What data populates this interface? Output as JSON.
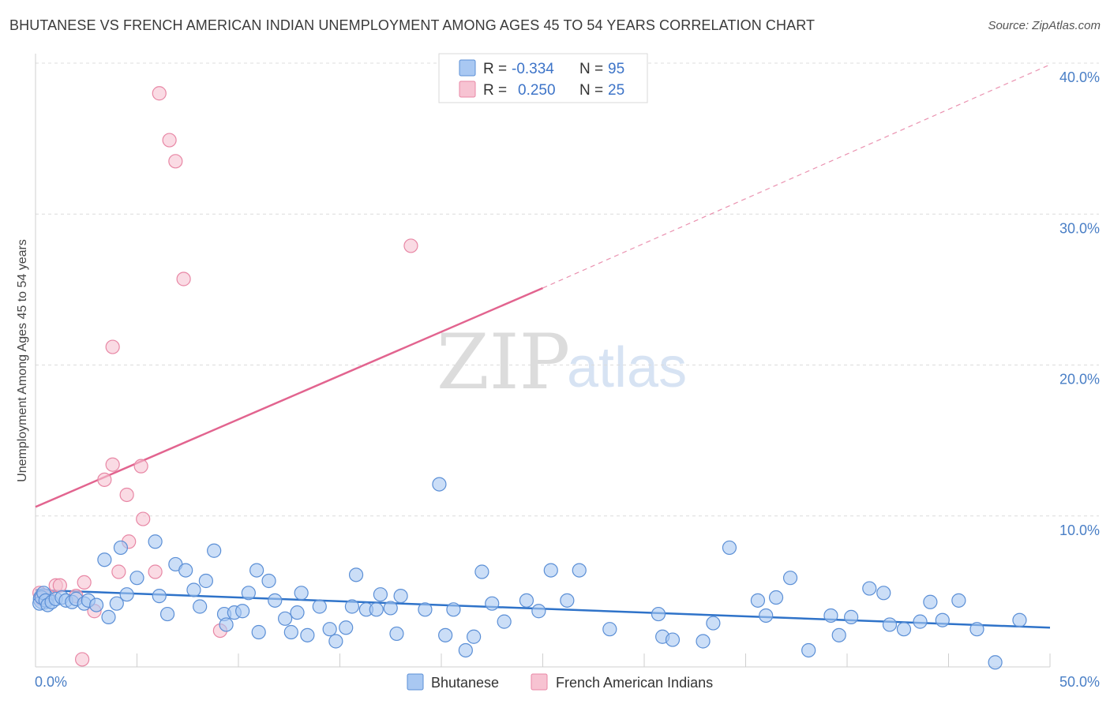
{
  "title": "BHUTANESE VS FRENCH AMERICAN INDIAN UNEMPLOYMENT AMONG AGES 45 TO 54 YEARS CORRELATION CHART",
  "source": "Source: ZipAtlas.com",
  "watermark": {
    "zip": "ZIP",
    "atlas": "atlas"
  },
  "colors": {
    "blue_fill": "#a9c8f2",
    "blue_stroke": "#5b8fd6",
    "blue_line": "#2f73c9",
    "pink_fill": "#f7c3d2",
    "pink_stroke": "#e887a5",
    "pink_line": "#e2648f",
    "grid": "#dcdcdc",
    "tick_text": "#4a7fc6"
  },
  "legend": {
    "series": [
      {
        "r_label": "R =",
        "r_value": "-0.334",
        "n_label": "N =",
        "n_value": "95"
      },
      {
        "r_label": "R =",
        "r_value": "0.250",
        "n_label": "N =",
        "n_value": "25"
      }
    ]
  },
  "bottom_legend": [
    "Bhutanese",
    "French American Indians"
  ],
  "chart_data": {
    "type": "scatter",
    "title": "BHUTANESE VS FRENCH AMERICAN INDIAN UNEMPLOYMENT AMONG AGES 45 TO 54 YEARS CORRELATION CHART",
    "xlabel": "",
    "ylabel": "Unemployment Among Ages 45 to 54 years",
    "xlim": [
      0,
      50
    ],
    "ylim": [
      0,
      40
    ],
    "x_tick_labels": [
      "0.0%",
      "50.0%"
    ],
    "y_ticks": [
      10,
      20,
      30,
      40
    ],
    "y_tick_labels": [
      "10.0%",
      "20.0%",
      "30.0%",
      "40.0%"
    ],
    "grid": true,
    "series": [
      {
        "name": "Bhutanese",
        "points": [
          [
            0.2,
            4.2
          ],
          [
            0.3,
            4.6
          ],
          [
            0.4,
            4.9
          ],
          [
            0.5,
            4.4
          ],
          [
            0.6,
            4.1
          ],
          [
            0.8,
            4.3
          ],
          [
            1.0,
            4.5
          ],
          [
            1.3,
            4.6
          ],
          [
            1.5,
            4.4
          ],
          [
            1.8,
            4.3
          ],
          [
            2.0,
            4.5
          ],
          [
            2.4,
            4.2
          ],
          [
            2.6,
            4.4
          ],
          [
            3.0,
            4.1
          ],
          [
            3.4,
            7.1
          ],
          [
            3.6,
            3.3
          ],
          [
            4.0,
            4.2
          ],
          [
            4.2,
            7.9
          ],
          [
            4.5,
            4.8
          ],
          [
            5.0,
            5.9
          ],
          [
            5.9,
            8.3
          ],
          [
            6.1,
            4.7
          ],
          [
            6.5,
            3.5
          ],
          [
            6.9,
            6.8
          ],
          [
            7.4,
            6.4
          ],
          [
            7.8,
            5.1
          ],
          [
            8.1,
            4.0
          ],
          [
            8.4,
            5.7
          ],
          [
            8.8,
            7.7
          ],
          [
            9.3,
            3.5
          ],
          [
            9.4,
            2.8
          ],
          [
            9.8,
            3.6
          ],
          [
            10.2,
            3.7
          ],
          [
            10.5,
            4.9
          ],
          [
            10.9,
            6.4
          ],
          [
            11.0,
            2.3
          ],
          [
            11.5,
            5.7
          ],
          [
            11.8,
            4.4
          ],
          [
            12.3,
            3.2
          ],
          [
            12.6,
            2.3
          ],
          [
            12.9,
            3.6
          ],
          [
            13.1,
            4.9
          ],
          [
            13.4,
            2.1
          ],
          [
            14.0,
            4.0
          ],
          [
            14.5,
            2.5
          ],
          [
            14.8,
            1.7
          ],
          [
            15.3,
            2.6
          ],
          [
            15.6,
            4.0
          ],
          [
            15.8,
            6.1
          ],
          [
            16.3,
            3.8
          ],
          [
            16.8,
            3.8
          ],
          [
            17.0,
            4.8
          ],
          [
            17.5,
            3.9
          ],
          [
            17.8,
            2.2
          ],
          [
            18.0,
            4.7
          ],
          [
            19.2,
            3.8
          ],
          [
            19.9,
            12.1
          ],
          [
            20.2,
            2.1
          ],
          [
            20.6,
            3.8
          ],
          [
            21.2,
            1.1
          ],
          [
            21.6,
            2.0
          ],
          [
            22.0,
            6.3
          ],
          [
            22.5,
            4.2
          ],
          [
            23.1,
            3.0
          ],
          [
            24.2,
            4.4
          ],
          [
            24.8,
            3.7
          ],
          [
            25.4,
            6.4
          ],
          [
            26.2,
            4.4
          ],
          [
            26.8,
            6.4
          ],
          [
            28.3,
            2.5
          ],
          [
            30.7,
            3.5
          ],
          [
            30.9,
            2.0
          ],
          [
            31.4,
            1.8
          ],
          [
            32.9,
            1.7
          ],
          [
            33.4,
            2.9
          ],
          [
            34.2,
            7.9
          ],
          [
            35.6,
            4.4
          ],
          [
            36.0,
            3.4
          ],
          [
            36.5,
            4.6
          ],
          [
            37.2,
            5.9
          ],
          [
            38.1,
            1.1
          ],
          [
            39.2,
            3.4
          ],
          [
            39.6,
            2.1
          ],
          [
            40.2,
            3.3
          ],
          [
            41.1,
            5.2
          ],
          [
            41.8,
            4.9
          ],
          [
            42.1,
            2.8
          ],
          [
            42.8,
            2.5
          ],
          [
            43.6,
            3.0
          ],
          [
            44.1,
            4.3
          ],
          [
            44.7,
            3.1
          ],
          [
            45.5,
            4.4
          ],
          [
            46.4,
            2.5
          ],
          [
            47.3,
            0.3
          ],
          [
            48.5,
            3.1
          ]
        ],
        "trend": {
          "x0": 0,
          "y0": 5.1,
          "x1": 50,
          "y1": 2.6
        }
      },
      {
        "name": "French American Indians",
        "points": [
          [
            0.2,
            4.9
          ],
          [
            0.3,
            4.5
          ],
          [
            0.4,
            4.6
          ],
          [
            0.6,
            4.7
          ],
          [
            1.0,
            5.4
          ],
          [
            1.2,
            5.4
          ],
          [
            2.0,
            4.7
          ],
          [
            2.3,
            0.5
          ],
          [
            2.4,
            5.6
          ],
          [
            2.9,
            3.7
          ],
          [
            3.4,
            12.4
          ],
          [
            3.8,
            21.2
          ],
          [
            3.8,
            13.4
          ],
          [
            4.1,
            6.3
          ],
          [
            4.5,
            11.4
          ],
          [
            4.6,
            8.3
          ],
          [
            5.2,
            13.3
          ],
          [
            5.3,
            9.8
          ],
          [
            5.9,
            6.3
          ],
          [
            6.1,
            38.0
          ],
          [
            6.6,
            34.9
          ],
          [
            6.9,
            33.5
          ],
          [
            7.3,
            25.7
          ],
          [
            9.1,
            2.4
          ],
          [
            18.5,
            27.9
          ]
        ],
        "trend": {
          "x0": 0,
          "y0": 10.6,
          "x1": 25,
          "y1": 25.1
        },
        "trend_extension": {
          "x0": 25,
          "y0": 25.1,
          "x1": 50,
          "y1": 39.9
        }
      }
    ]
  }
}
